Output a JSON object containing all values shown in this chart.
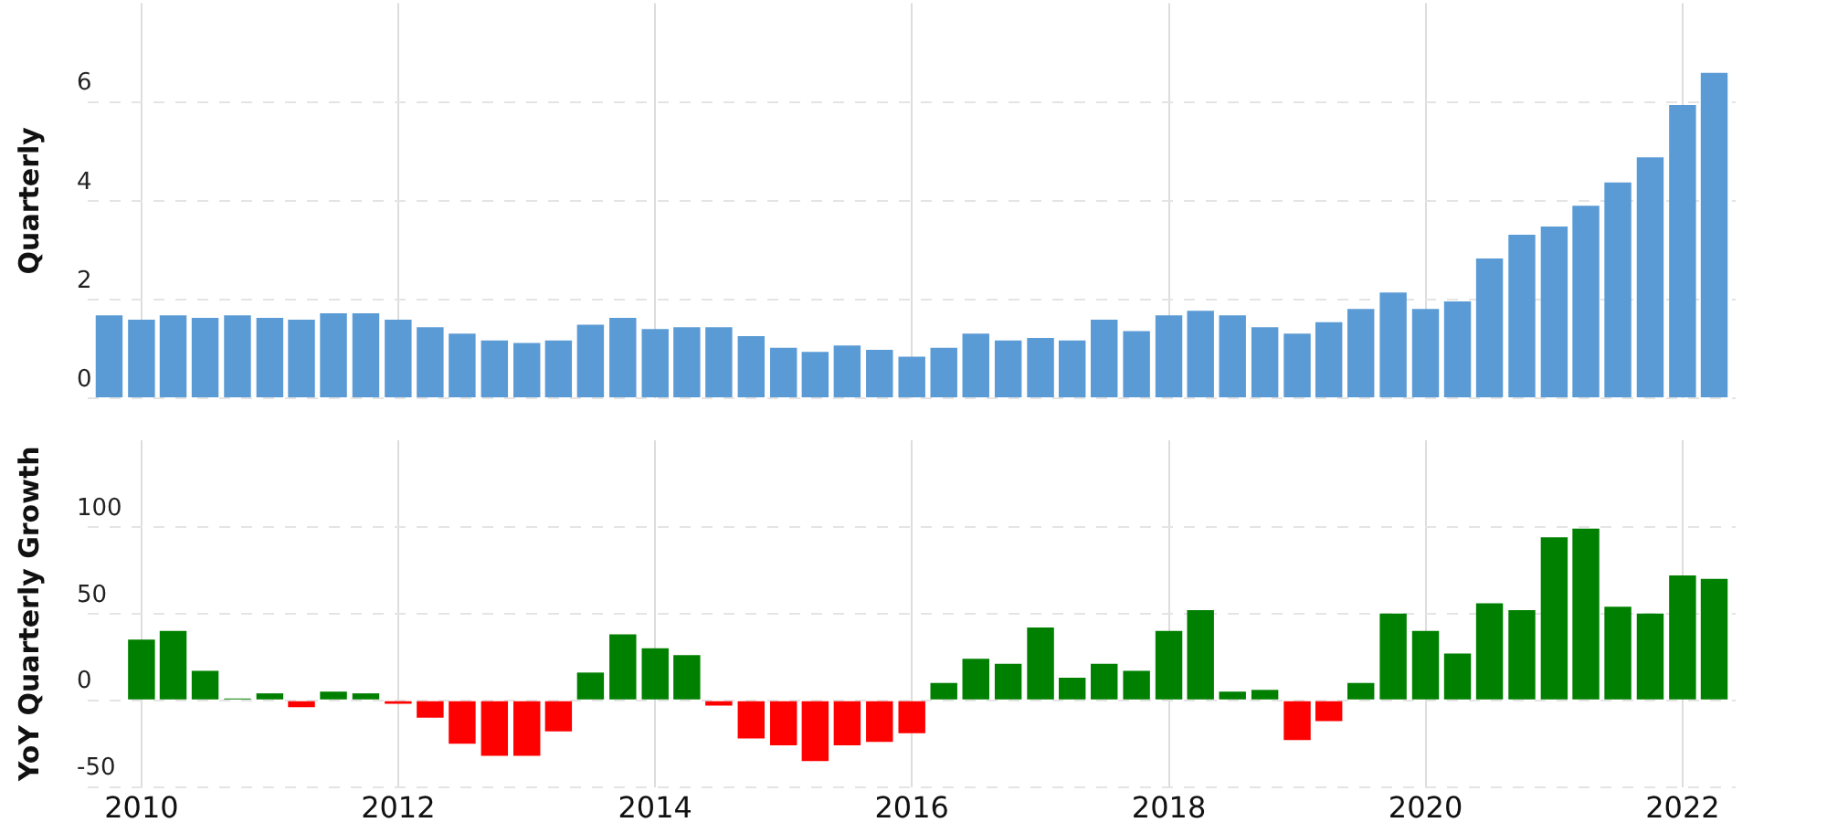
{
  "chart_data": [
    {
      "type": "bar",
      "ylabel": "Quarterly",
      "grid": true,
      "tick_labels": "y",
      "color": "#5b9bd5",
      "ylim": [
        0,
        8
      ],
      "yticks": [
        0,
        2,
        4,
        6
      ],
      "xlim": [
        "2009-08",
        "2022-06"
      ],
      "xticks": [
        "2010",
        "2012",
        "2014",
        "2016",
        "2018",
        "2020",
        "2022"
      ],
      "x": [
        "2009-10",
        "2010-01",
        "2010-04",
        "2010-07",
        "2010-10",
        "2011-01",
        "2011-04",
        "2011-07",
        "2011-10",
        "2012-01",
        "2012-04",
        "2012-07",
        "2012-10",
        "2013-01",
        "2013-04",
        "2013-07",
        "2013-10",
        "2014-01",
        "2014-04",
        "2014-07",
        "2014-10",
        "2015-01",
        "2015-04",
        "2015-07",
        "2015-10",
        "2016-01",
        "2016-04",
        "2016-07",
        "2016-10",
        "2017-01",
        "2017-04",
        "2017-07",
        "2017-10",
        "2018-01",
        "2018-04",
        "2018-07",
        "2018-10",
        "2019-01",
        "2019-04",
        "2019-07",
        "2019-10",
        "2020-01",
        "2020-04",
        "2020-07",
        "2020-10",
        "2021-01",
        "2021-04",
        "2021-07",
        "2021-10",
        "2022-01",
        "2022-04"
      ],
      "values": [
        1.68,
        1.59,
        1.68,
        1.63,
        1.68,
        1.63,
        1.59,
        1.72,
        1.72,
        1.59,
        1.44,
        1.31,
        1.17,
        1.12,
        1.17,
        1.49,
        1.63,
        1.4,
        1.44,
        1.44,
        1.26,
        1.02,
        0.94,
        1.07,
        0.98,
        0.84,
        1.02,
        1.31,
        1.17,
        1.22,
        1.17,
        1.59,
        1.36,
        1.68,
        1.77,
        1.68,
        1.44,
        1.31,
        1.54,
        1.81,
        2.14,
        1.81,
        1.96,
        2.83,
        3.31,
        3.48,
        3.9,
        4.37,
        4.88,
        5.94,
        6.59
      ]
    },
    {
      "type": "bar",
      "ylabel": "YoY Quarterly Growth",
      "grid": true,
      "ylim": [
        -50,
        150
      ],
      "yticks": [
        -50,
        0,
        50,
        100
      ],
      "xlim": [
        "2009-08",
        "2022-06"
      ],
      "xticks": [
        "2010",
        "2012",
        "2014",
        "2016",
        "2018",
        "2020",
        "2022"
      ],
      "x": [
        "2010-01",
        "2010-04",
        "2010-07",
        "2010-10",
        "2011-01",
        "2011-04",
        "2011-07",
        "2011-10",
        "2012-01",
        "2012-04",
        "2012-07",
        "2012-10",
        "2013-01",
        "2013-04",
        "2013-07",
        "2013-10",
        "2014-01",
        "2014-04",
        "2014-07",
        "2014-10",
        "2015-01",
        "2015-04",
        "2015-07",
        "2015-10",
        "2016-01",
        "2016-04",
        "2016-07",
        "2016-10",
        "2017-01",
        "2017-04",
        "2017-07",
        "2017-10",
        "2018-01",
        "2018-04",
        "2018-07",
        "2018-10",
        "2019-01",
        "2019-04",
        "2019-07",
        "2019-10",
        "2020-01",
        "2020-04",
        "2020-07",
        "2020-10",
        "2021-01",
        "2021-04",
        "2021-07",
        "2021-10",
        "2022-01",
        "2022-04"
      ],
      "values": [
        35,
        40,
        17,
        1,
        4,
        -4,
        5,
        4,
        -2,
        -10,
        -25,
        -32,
        -32,
        -18,
        16,
        38,
        30,
        26,
        -3,
        -22,
        -26,
        -35,
        -26,
        -24,
        -19,
        10,
        24,
        21,
        42,
        13,
        21,
        17,
        40,
        52,
        5,
        6,
        -23,
        -12,
        10,
        50,
        40,
        27,
        56,
        52,
        94,
        99,
        54,
        50,
        72,
        70
      ],
      "colors": [
        "#008000",
        "#008000",
        "#008000",
        "#008000",
        "#008000",
        "#ff0000",
        "#008000",
        "#008000",
        "#ff0000",
        "#ff0000",
        "#ff0000",
        "#ff0000",
        "#ff0000",
        "#ff0000",
        "#008000",
        "#008000",
        "#008000",
        "#008000",
        "#ff0000",
        "#ff0000",
        "#ff0000",
        "#ff0000",
        "#ff0000",
        "#ff0000",
        "#ff0000",
        "#008000",
        "#008000",
        "#008000",
        "#008000",
        "#008000",
        "#008000",
        "#008000",
        "#008000",
        "#008000",
        "#008000",
        "#008000",
        "#ff0000",
        "#ff0000",
        "#008000",
        "#008000",
        "#008000",
        "#008000",
        "#008000",
        "#008000",
        "#008000",
        "#008000",
        "#008000",
        "#008000",
        "#008000",
        "#008000"
      ]
    }
  ]
}
